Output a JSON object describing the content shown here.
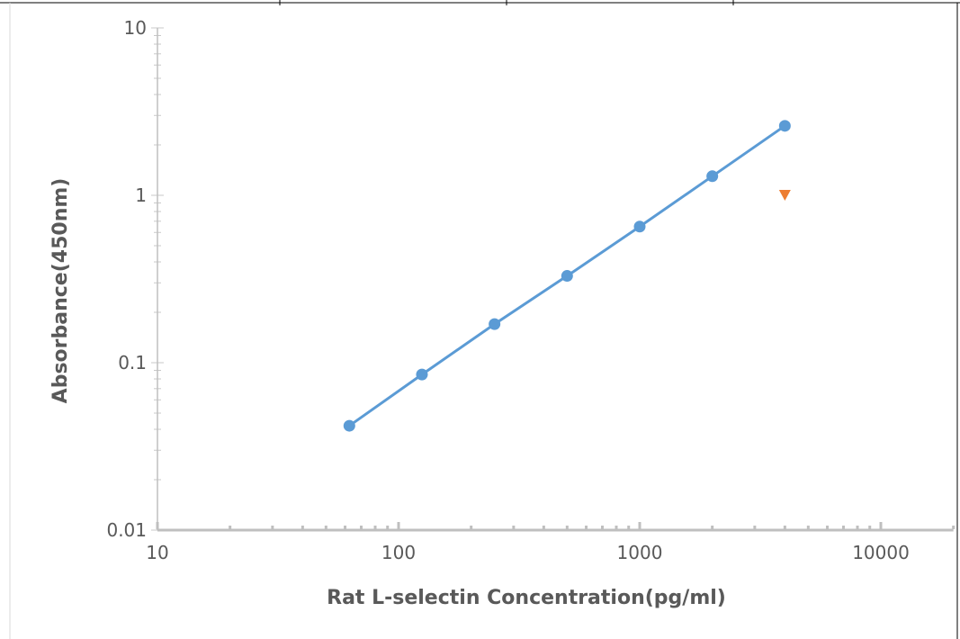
{
  "chart_data": {
    "type": "scatter",
    "title": "",
    "xlabel": "Rat L-selectin Concentration(pg/ml)",
    "ylabel": "Absorbance(450nm)",
    "x_scale": "log",
    "y_scale": "log",
    "xlim": [
      10,
      20000
    ],
    "ylim": [
      0.01,
      10
    ],
    "x_tick_labels": [
      "10",
      "100",
      "1000",
      "10000"
    ],
    "y_tick_labels": [
      "0.01",
      "0.1",
      "1",
      "10"
    ],
    "grid": false,
    "legend": "none",
    "series": [
      {
        "marker": "circle",
        "line": true,
        "color": "#5b9bd5",
        "x": [
          62.5,
          125,
          250,
          500,
          1000,
          2000,
          4000
        ],
        "y": [
          0.042,
          0.085,
          0.17,
          0.33,
          0.65,
          1.3,
          2.6
        ]
      },
      {
        "marker": "triangle-down",
        "line": false,
        "color": "#ed7d31",
        "x": [
          4000
        ],
        "y": [
          1.0
        ]
      }
    ]
  }
}
